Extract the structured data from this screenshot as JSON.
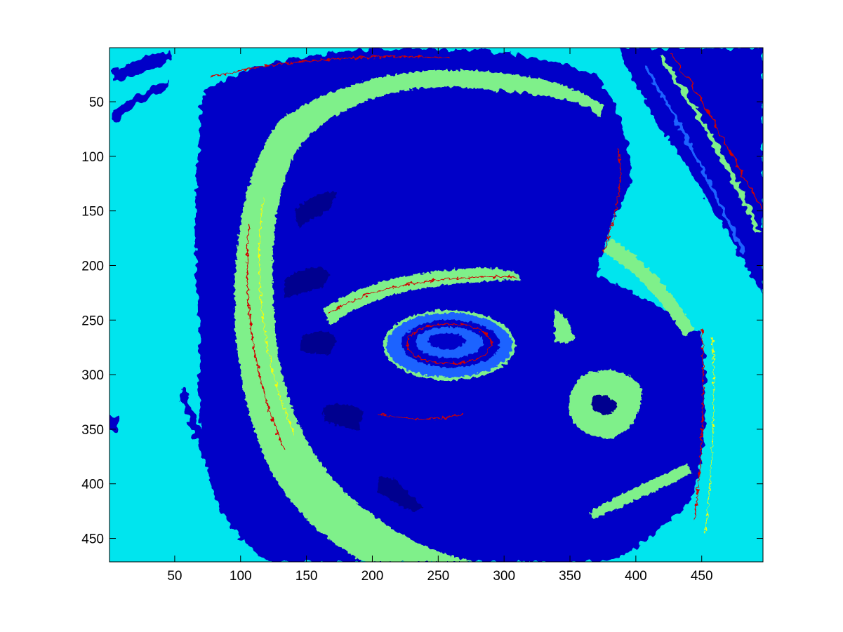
{
  "chart_data": {
    "type": "heatmap",
    "title": "",
    "xlabel": "",
    "ylabel": "",
    "xlim": [
      1,
      496
    ],
    "ylim": [
      1,
      471
    ],
    "y_reversed": true,
    "x_ticks": [
      50,
      100,
      150,
      200,
      250,
      300,
      350,
      400,
      450
    ],
    "y_ticks": [
      50,
      100,
      150,
      200,
      250,
      300,
      350,
      400,
      450
    ],
    "grid": false,
    "colormap": "jet",
    "colors": {
      "background": "#00e5ee",
      "dark_blue": "#0000c8",
      "navy": "#00008f",
      "mid_blue": "#1e64ff",
      "green": "#7ff08a",
      "yellow": "#ffff00",
      "red": "#d20000",
      "axes": "#000000"
    },
    "regions": [
      {
        "class": "cyan-background",
        "value_level": 2
      },
      {
        "class": "outer-crescent-dark-blue",
        "value_level": 0
      },
      {
        "class": "green-crescent",
        "value_level": 3
      },
      {
        "class": "central-dark-blue-body",
        "value_level": 0
      },
      {
        "class": "central-eye-structure",
        "value_level": 3
      },
      {
        "class": "right-green-patch",
        "value_level": 3
      },
      {
        "class": "upper-right-streaks",
        "value_level": 0
      },
      {
        "class": "red-edge-speckles",
        "value_level": 5
      }
    ]
  }
}
